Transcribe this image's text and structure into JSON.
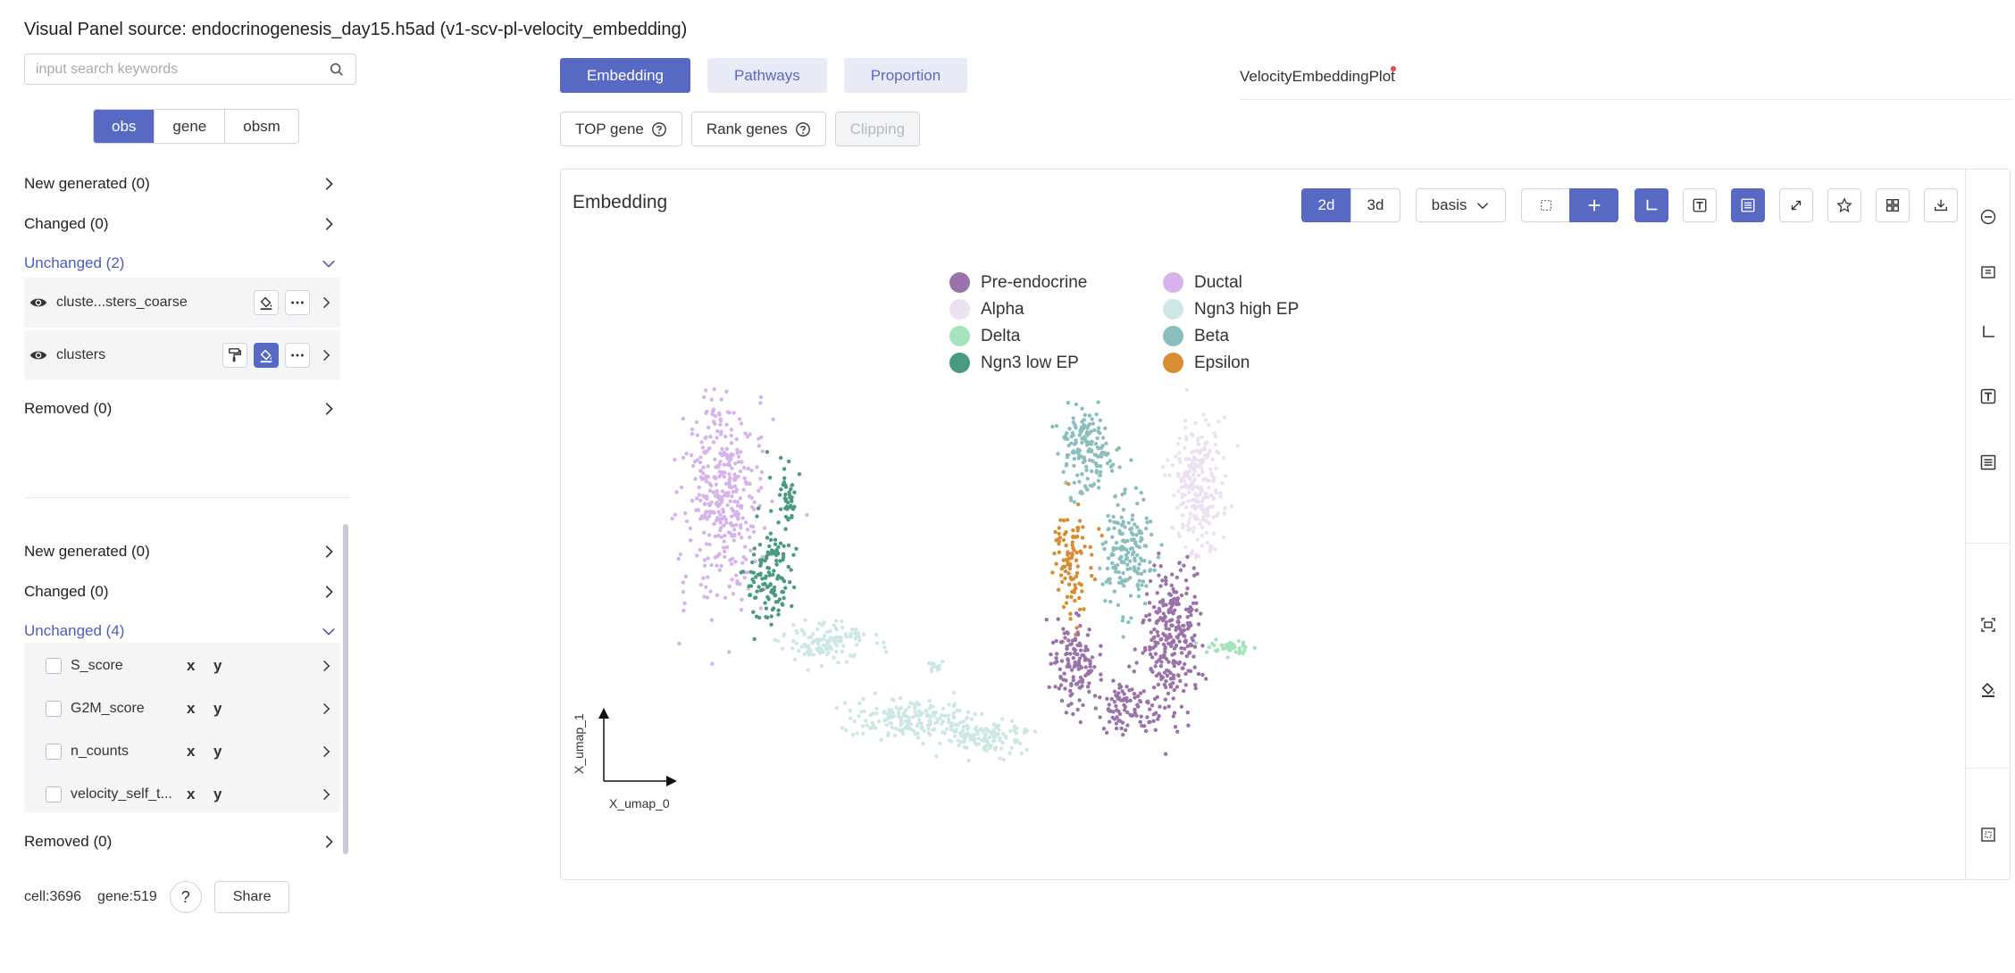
{
  "header": {
    "title": "Visual Panel source: endocrinogenesis_day15.h5ad (v1-scv-pl-velocity_embedding)"
  },
  "search": {
    "placeholder": "input search keywords"
  },
  "segments": [
    "obs",
    "gene",
    "obsm"
  ],
  "obs_sections": {
    "new_generated": "New generated (0)",
    "changed": "Changed (0)",
    "unchanged": "Unchanged (2)",
    "removed": "Removed (0)",
    "items": [
      {
        "name": "cluste...sters_coarse"
      },
      {
        "name": "clusters"
      }
    ]
  },
  "obsm_sections": {
    "new_generated": "New generated (0)",
    "changed": "Changed (0)",
    "unchanged": "Unchanged (4)",
    "removed": "Removed (0)",
    "items": [
      {
        "name": "S_score",
        "x": "x",
        "y": "y"
      },
      {
        "name": "G2M_score",
        "x": "x",
        "y": "y"
      },
      {
        "name": "n_counts",
        "x": "x",
        "y": "y"
      },
      {
        "name": "velocity_self_t...",
        "x": "x",
        "y": "y"
      }
    ]
  },
  "footer": {
    "cells": "cell:3696",
    "genes": "gene:519",
    "help": "?",
    "share": "Share"
  },
  "tabs": [
    "Embedding",
    "Pathways",
    "Proportion"
  ],
  "sub_buttons": {
    "top_gene": "TOP gene",
    "rank_genes": "Rank genes",
    "clipping": "Clipping"
  },
  "plot_name": "VelocityEmbeddingPlot",
  "panel": {
    "title": "Embedding",
    "dim_2d": "2d",
    "dim_3d": "3d",
    "basis": "basis"
  },
  "colors": {
    "accent": "#5769c3",
    "accent_light": "#e8eaf6"
  },
  "chart_data": {
    "type": "scatter",
    "xlabel": "X_umap_0",
    "ylabel": "X_umap_1",
    "legend": [
      {
        "name": "Pre-endocrine",
        "color": "#9b72a9"
      },
      {
        "name": "Ductal",
        "color": "#d6b3ea"
      },
      {
        "name": "Alpha",
        "color": "#ece0f3"
      },
      {
        "name": "Ngn3 high EP",
        "color": "#cde8e4"
      },
      {
        "name": "Delta",
        "color": "#a6e3bd"
      },
      {
        "name": "Beta",
        "color": "#8bbfbf"
      },
      {
        "name": "Ngn3 low EP",
        "color": "#4a9a80"
      },
      {
        "name": "Epsilon",
        "color": "#d88d31"
      }
    ]
  }
}
